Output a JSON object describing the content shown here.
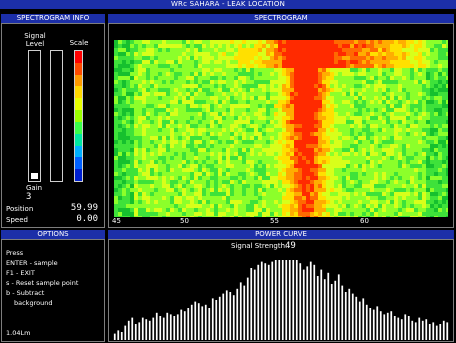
{
  "window_title": "WRc SAHARA - LEAK LOCATION",
  "panels": {
    "spectrogram_info": "SPECTROGRAM INFO",
    "spectrogram": "SPECTROGRAM",
    "options": "OPTIONS",
    "power_curve": "POWER CURVE"
  },
  "info": {
    "signal_level_label": "Signal Level",
    "scale_label": "Scale",
    "gain_label": "Gain",
    "gain_value": "3",
    "position_label": "Position",
    "position_value": "59.99",
    "speed_label": "Speed",
    "speed_value": "0.00",
    "signal_level_fraction": 0.05,
    "scale_colors": [
      "#ff0000",
      "#ff4a00",
      "#ff9a00",
      "#ffd800",
      "#e8ff00",
      "#9aff00",
      "#39ff4a",
      "#00e8a0",
      "#00b0ff",
      "#0060ff",
      "#0020d0"
    ]
  },
  "spectrogram": {
    "axis_ticks": [
      "45",
      "50",
      "55",
      "60"
    ],
    "colors": {
      "background": "#17c92e",
      "warm": "#ff2a00",
      "mid": "#ffcc00",
      "cool": "#7cff2a"
    }
  },
  "options": {
    "items": [
      "Press",
      "ENTER - sample",
      "F1 - EXIT",
      "s - Reset sample point",
      "b - Subtract",
      "background"
    ],
    "footer": "1.04Lm"
  },
  "power_curve": {
    "signal_strength_label": "Signal Strength:",
    "signal_strength_value": "49",
    "chart_data": {
      "type": "bar",
      "values": [
        4,
        6,
        5,
        9,
        12,
        14,
        10,
        11,
        14,
        13,
        12,
        14,
        17,
        15,
        14,
        17,
        16,
        15,
        16,
        19,
        18,
        20,
        22,
        24,
        23,
        21,
        22,
        20,
        26,
        25,
        27,
        29,
        31,
        30,
        28,
        32,
        36,
        34,
        39,
        45,
        44,
        47,
        49,
        48,
        47,
        49,
        50,
        50,
        50,
        50,
        50,
        50,
        50,
        48,
        44,
        46,
        49,
        47,
        40,
        44,
        38,
        42,
        35,
        37,
        41,
        34,
        30,
        32,
        29,
        27,
        24,
        26,
        22,
        20,
        19,
        21,
        18,
        16,
        17,
        18,
        15,
        14,
        13,
        16,
        15,
        12,
        11,
        14,
        12,
        13,
        10,
        11,
        9,
        10,
        12,
        11
      ],
      "ylim": [
        0,
        55
      ]
    }
  }
}
